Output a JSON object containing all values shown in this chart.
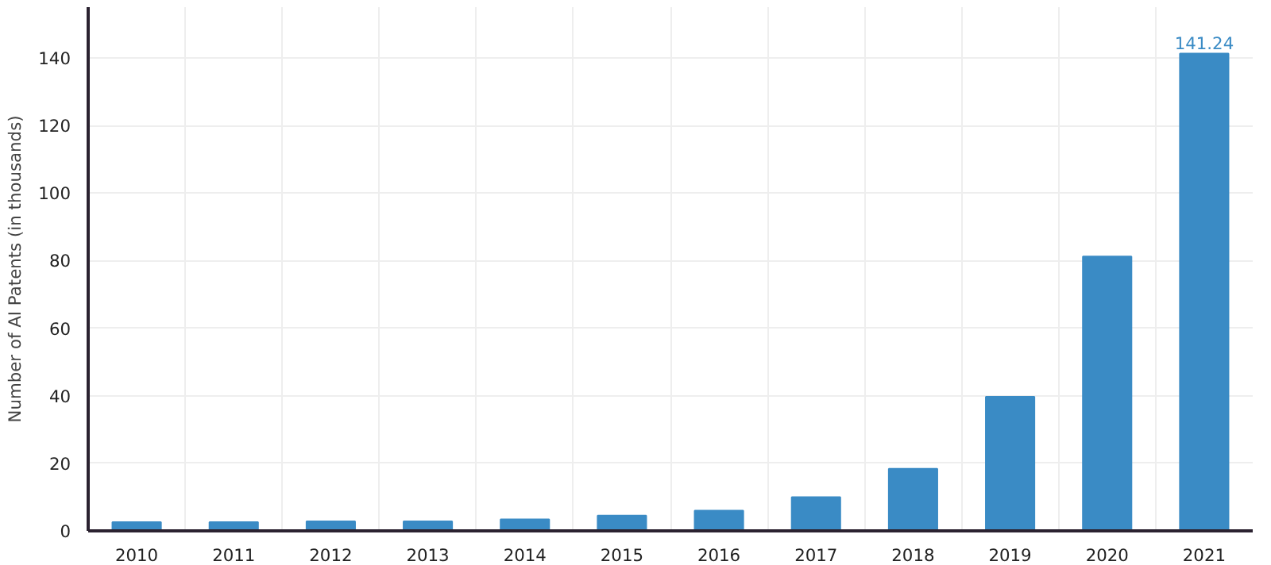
{
  "chart_data": {
    "type": "bar",
    "ylabel": "Number of AI Patents (in thousands)",
    "categories": [
      "2010",
      "2011",
      "2012",
      "2013",
      "2014",
      "2015",
      "2016",
      "2017",
      "2018",
      "2019",
      "2020",
      "2021"
    ],
    "values": [
      2.6,
      2.6,
      2.8,
      2.8,
      3.4,
      4.5,
      6.0,
      10.0,
      18.4,
      39.7,
      81.2,
      141.24
    ],
    "value_labels": [
      null,
      null,
      null,
      null,
      null,
      null,
      null,
      null,
      null,
      null,
      null,
      "141.24"
    ],
    "color": "#3a8bc5",
    "ylim": [
      0,
      155
    ],
    "yticks": [
      0,
      20,
      40,
      60,
      80,
      100,
      120,
      140
    ],
    "grid": true
  }
}
